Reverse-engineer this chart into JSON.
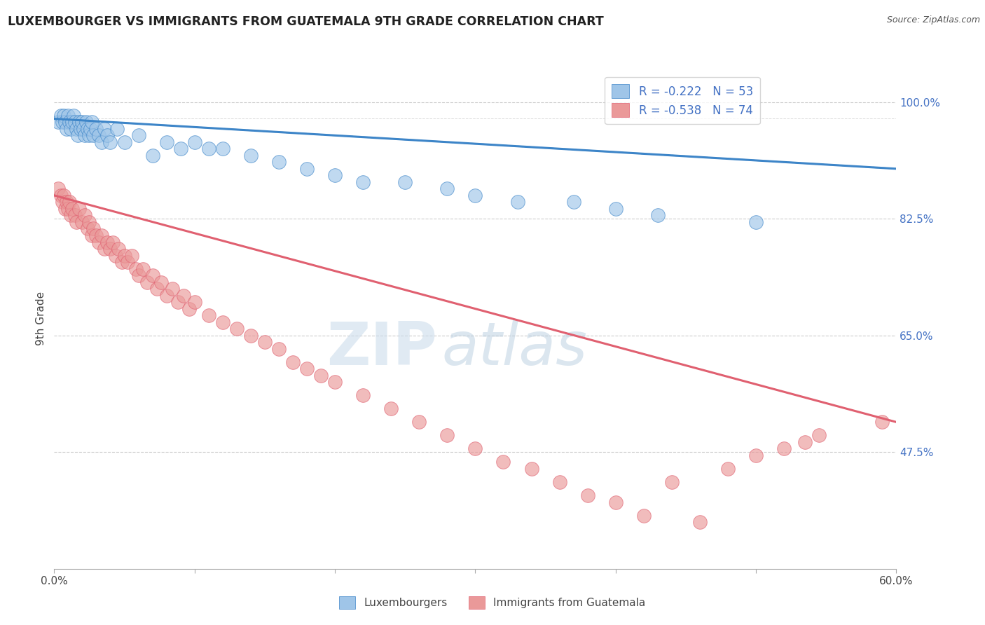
{
  "title": "LUXEMBOURGER VS IMMIGRANTS FROM GUATEMALA 9TH GRADE CORRELATION CHART",
  "source": "Source: ZipAtlas.com",
  "ylabel": "9th Grade",
  "xlim": [
    0.0,
    0.6
  ],
  "ylim": [
    0.3,
    1.05
  ],
  "ytick_positions": [
    0.475,
    0.65,
    0.825,
    1.0
  ],
  "ytick_labels": [
    "47.5%",
    "65.0%",
    "82.5%",
    "100.0%"
  ],
  "blue_R": -0.222,
  "blue_N": 53,
  "pink_R": -0.538,
  "pink_N": 74,
  "blue_color": "#9fc5e8",
  "pink_color": "#ea9999",
  "blue_line_color": "#3d85c8",
  "pink_line_color": "#e06070",
  "watermark_zip": "ZIP",
  "watermark_atlas": "atlas",
  "watermark_color_zip": "#c5d9ed",
  "watermark_color_atlas": "#b8cfe0",
  "legend_label_blue": "Luxembourgers",
  "legend_label_pink": "Immigrants from Guatemala",
  "blue_scatter_x": [
    0.003,
    0.005,
    0.006,
    0.007,
    0.008,
    0.009,
    0.01,
    0.011,
    0.012,
    0.013,
    0.014,
    0.015,
    0.016,
    0.017,
    0.018,
    0.019,
    0.02,
    0.021,
    0.022,
    0.023,
    0.024,
    0.025,
    0.026,
    0.027,
    0.028,
    0.03,
    0.032,
    0.034,
    0.036,
    0.038,
    0.04,
    0.045,
    0.05,
    0.06,
    0.07,
    0.08,
    0.09,
    0.1,
    0.11,
    0.12,
    0.14,
    0.16,
    0.18,
    0.2,
    0.22,
    0.25,
    0.28,
    0.3,
    0.33,
    0.37,
    0.4,
    0.43,
    0.5
  ],
  "blue_scatter_y": [
    0.97,
    0.98,
    0.97,
    0.98,
    0.97,
    0.96,
    0.98,
    0.97,
    0.96,
    0.97,
    0.98,
    0.97,
    0.96,
    0.95,
    0.97,
    0.96,
    0.97,
    0.96,
    0.95,
    0.97,
    0.96,
    0.95,
    0.96,
    0.97,
    0.95,
    0.96,
    0.95,
    0.94,
    0.96,
    0.95,
    0.94,
    0.96,
    0.94,
    0.95,
    0.92,
    0.94,
    0.93,
    0.94,
    0.93,
    0.93,
    0.92,
    0.91,
    0.9,
    0.89,
    0.88,
    0.88,
    0.87,
    0.86,
    0.85,
    0.85,
    0.84,
    0.83,
    0.82
  ],
  "pink_scatter_x": [
    0.003,
    0.005,
    0.006,
    0.007,
    0.008,
    0.009,
    0.01,
    0.011,
    0.012,
    0.013,
    0.015,
    0.016,
    0.018,
    0.02,
    0.022,
    0.024,
    0.025,
    0.027,
    0.028,
    0.03,
    0.032,
    0.034,
    0.036,
    0.038,
    0.04,
    0.042,
    0.044,
    0.046,
    0.048,
    0.05,
    0.052,
    0.055,
    0.058,
    0.06,
    0.063,
    0.066,
    0.07,
    0.073,
    0.076,
    0.08,
    0.084,
    0.088,
    0.092,
    0.096,
    0.1,
    0.11,
    0.12,
    0.13,
    0.14,
    0.15,
    0.16,
    0.17,
    0.18,
    0.19,
    0.2,
    0.22,
    0.24,
    0.26,
    0.28,
    0.3,
    0.32,
    0.34,
    0.36,
    0.38,
    0.4,
    0.42,
    0.44,
    0.46,
    0.48,
    0.5,
    0.52,
    0.535,
    0.545,
    0.59
  ],
  "pink_scatter_y": [
    0.87,
    0.86,
    0.85,
    0.86,
    0.84,
    0.85,
    0.84,
    0.85,
    0.83,
    0.84,
    0.83,
    0.82,
    0.84,
    0.82,
    0.83,
    0.81,
    0.82,
    0.8,
    0.81,
    0.8,
    0.79,
    0.8,
    0.78,
    0.79,
    0.78,
    0.79,
    0.77,
    0.78,
    0.76,
    0.77,
    0.76,
    0.77,
    0.75,
    0.74,
    0.75,
    0.73,
    0.74,
    0.72,
    0.73,
    0.71,
    0.72,
    0.7,
    0.71,
    0.69,
    0.7,
    0.68,
    0.67,
    0.66,
    0.65,
    0.64,
    0.63,
    0.61,
    0.6,
    0.59,
    0.58,
    0.56,
    0.54,
    0.52,
    0.5,
    0.48,
    0.46,
    0.45,
    0.43,
    0.41,
    0.4,
    0.38,
    0.43,
    0.37,
    0.45,
    0.47,
    0.48,
    0.49,
    0.5,
    0.52
  ],
  "blue_trend_x": [
    0.0,
    0.6
  ],
  "blue_trend_y": [
    0.975,
    0.9
  ],
  "pink_trend_x": [
    0.0,
    0.6
  ],
  "pink_trend_y": [
    0.86,
    0.52
  ]
}
